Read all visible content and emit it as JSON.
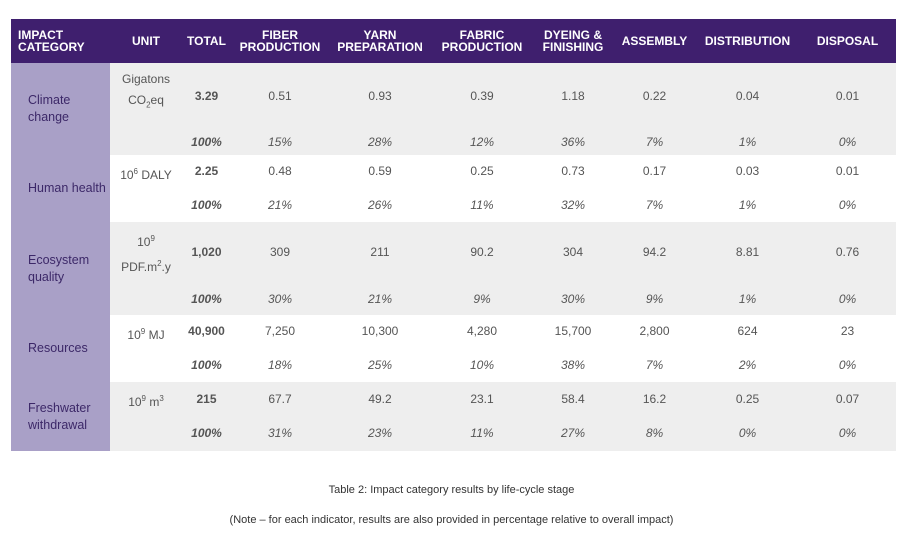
{
  "headers": {
    "category": "IMPACT CATEGORY",
    "unit": "UNIT",
    "total": "TOTAL",
    "fiber": "FIBER PRODUCTION",
    "yarn": "YARN PREPARATION",
    "fabric": "FABRIC PRODUCTION",
    "dyeing": "DYEING & FINISHING",
    "assembly": "ASSEMBLY",
    "distribution": "DISTRIBUTION",
    "disposal": "DISPOSAL"
  },
  "rows": [
    {
      "category": "Climate change",
      "unit_main": "Gigatons CO",
      "unit_sub": "2",
      "unit_suffix": "eq",
      "values": [
        "3.29",
        "0.51",
        "0.93",
        "0.39",
        "1.18",
        "0.22",
        "0.04",
        "0.01"
      ],
      "percents": [
        "100%",
        "15%",
        "28%",
        "12%",
        "36%",
        "7%",
        "1%",
        "0%"
      ]
    },
    {
      "category": "Human health",
      "unit_pre": "10",
      "unit_sup": "6",
      "unit_post": " DALY",
      "values": [
        "2.25",
        "0.48",
        "0.59",
        "0.25",
        "0.73",
        "0.17",
        "0.03",
        "0.01"
      ],
      "percents": [
        "100%",
        "21%",
        "26%",
        "11%",
        "32%",
        "7%",
        "1%",
        "0%"
      ]
    },
    {
      "category": "Ecosystem quality",
      "unit_pre": "10",
      "unit_sup": "9",
      "unit_line2": "PDF.m",
      "unit_sup2": "2",
      "unit_post2": ".y",
      "values": [
        "1,020",
        "309",
        "211",
        "90.2",
        "304",
        "94.2",
        "8.81",
        "0.76"
      ],
      "percents": [
        "100%",
        "30%",
        "21%",
        "9%",
        "30%",
        "9%",
        "1%",
        "0%"
      ]
    },
    {
      "category": "Resources",
      "unit_pre": "10",
      "unit_sup": "9",
      "unit_post": " MJ",
      "values": [
        "40,900",
        "7,250",
        "10,300",
        "4,280",
        "15,700",
        "2,800",
        "624",
        "23"
      ],
      "percents": [
        "100%",
        "18%",
        "25%",
        "10%",
        "38%",
        "7%",
        "2%",
        "0%"
      ]
    },
    {
      "category": "Freshwater withdrawal",
      "unit_pre": "10",
      "unit_sup": "9",
      "unit_post": " m",
      "unit_sup2": "3",
      "values": [
        "215",
        "67.7",
        "49.2",
        "23.1",
        "58.4",
        "16.2",
        "0.25",
        "0.07"
      ],
      "percents": [
        "100%",
        "31%",
        "23%",
        "11%",
        "27%",
        "8%",
        "0%",
        "0%"
      ]
    }
  ],
  "caption": "Table 2: Impact category results by life-cycle stage",
  "note": "(Note – for each indicator, results are also provided in percentage relative to overall impact)"
}
